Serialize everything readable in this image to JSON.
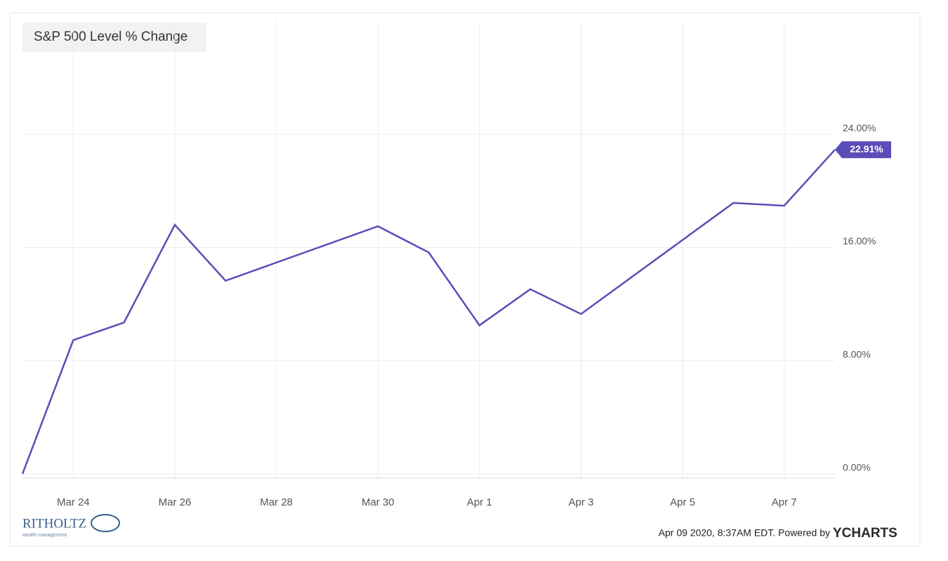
{
  "chart_data": {
    "type": "line",
    "title": "S&P 500 Level % Change",
    "x": [
      "2020-03-23",
      "2020-03-24",
      "2020-03-25",
      "2020-03-26",
      "2020-03-27",
      "2020-03-30",
      "2020-03-31",
      "2020-04-01",
      "2020-04-02",
      "2020-04-03",
      "2020-04-06",
      "2020-04-07",
      "2020-04-08"
    ],
    "values": [
      0,
      9.45,
      10.7,
      17.6,
      13.65,
      17.5,
      15.65,
      10.5,
      13.05,
      11.3,
      19.15,
      18.95,
      22.91
    ],
    "value_labels": [
      null,
      null,
      null,
      null,
      null,
      null,
      null,
      null,
      null,
      null,
      null,
      null,
      "22.91%"
    ],
    "color": "#5b4db7",
    "xlim": [
      "2020-03-23",
      "2020-04-08"
    ],
    "xticks": [
      {
        "value": "2020-03-24",
        "label": "Mar 24"
      },
      {
        "value": "2020-03-26",
        "label": "Mar 26"
      },
      {
        "value": "2020-03-28",
        "label": "Mar 28"
      },
      {
        "value": "2020-03-30",
        "label": "Mar 30"
      },
      {
        "value": "2020-04-01",
        "label": "Apr 1"
      },
      {
        "value": "2020-04-03",
        "label": "Apr 3"
      },
      {
        "value": "2020-04-05",
        "label": "Apr 5"
      },
      {
        "value": "2020-04-07",
        "label": "Apr 7"
      }
    ],
    "ylim": [
      -0.3,
      32
    ],
    "yticks": [
      {
        "value": 0,
        "label": "0.00%"
      },
      {
        "value": 8,
        "label": "8.00%"
      },
      {
        "value": 16,
        "label": "16.00%"
      },
      {
        "value": 24,
        "label": "24.00%"
      }
    ],
    "grid": true
  },
  "footer": {
    "timestamp": "Apr 09 2020, 8:37AM EDT. Powered by",
    "brand": "YCHARTS"
  },
  "logo": {
    "name": "RITHOLTZ",
    "subtitle": "wealth management"
  }
}
